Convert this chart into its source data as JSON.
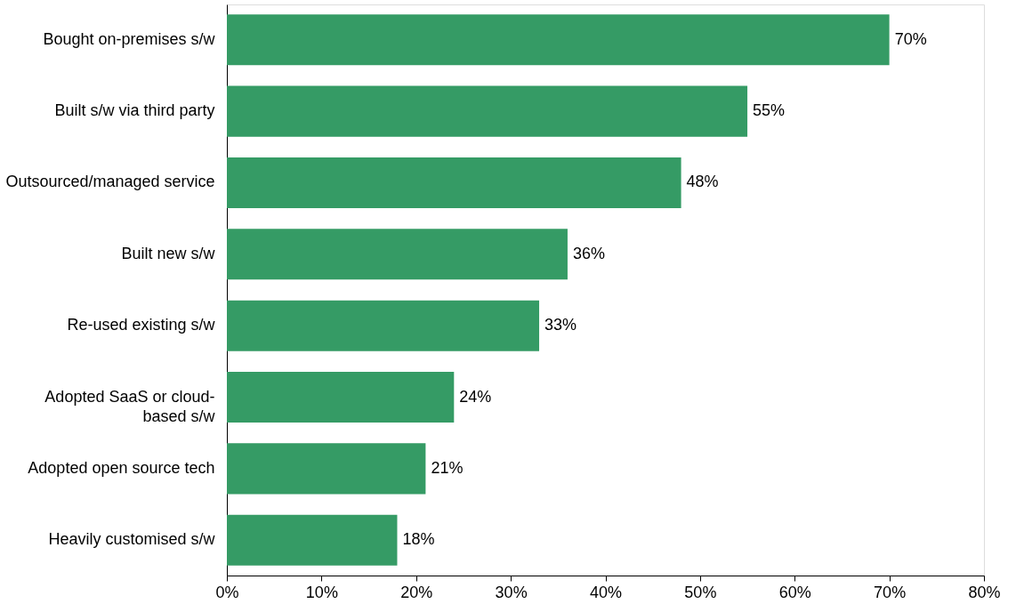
{
  "chart_data": {
    "type": "bar",
    "orientation": "horizontal",
    "categories": [
      "Bought on-premises s/w",
      "Built s/w  via third party",
      "Outsourced/managed service",
      "Built new  s/w",
      "Re-used existing s/w",
      "Adopted SaaS or cloud-based s/w",
      "Adopted open source tech",
      "Heavily customised s/w"
    ],
    "values": [
      70,
      55,
      48,
      36,
      33,
      24,
      21,
      18
    ],
    "value_labels": [
      "70%",
      "55%",
      "48%",
      "36%",
      "33%",
      "24%",
      "21%",
      "18%"
    ],
    "color": "#359b65",
    "xlim": [
      0,
      80
    ],
    "xticks": [
      {
        "value": 0,
        "label": "0%"
      },
      {
        "value": 10,
        "label": "10%"
      },
      {
        "value": 20,
        "label": "20%"
      },
      {
        "value": 30,
        "label": "30%"
      },
      {
        "value": 40,
        "label": "40%"
      },
      {
        "value": 50,
        "label": "50%"
      },
      {
        "value": 60,
        "label": "60%"
      },
      {
        "value": 70,
        "label": "70%"
      },
      {
        "value": 80,
        "label": "80%"
      }
    ],
    "grid": false
  }
}
